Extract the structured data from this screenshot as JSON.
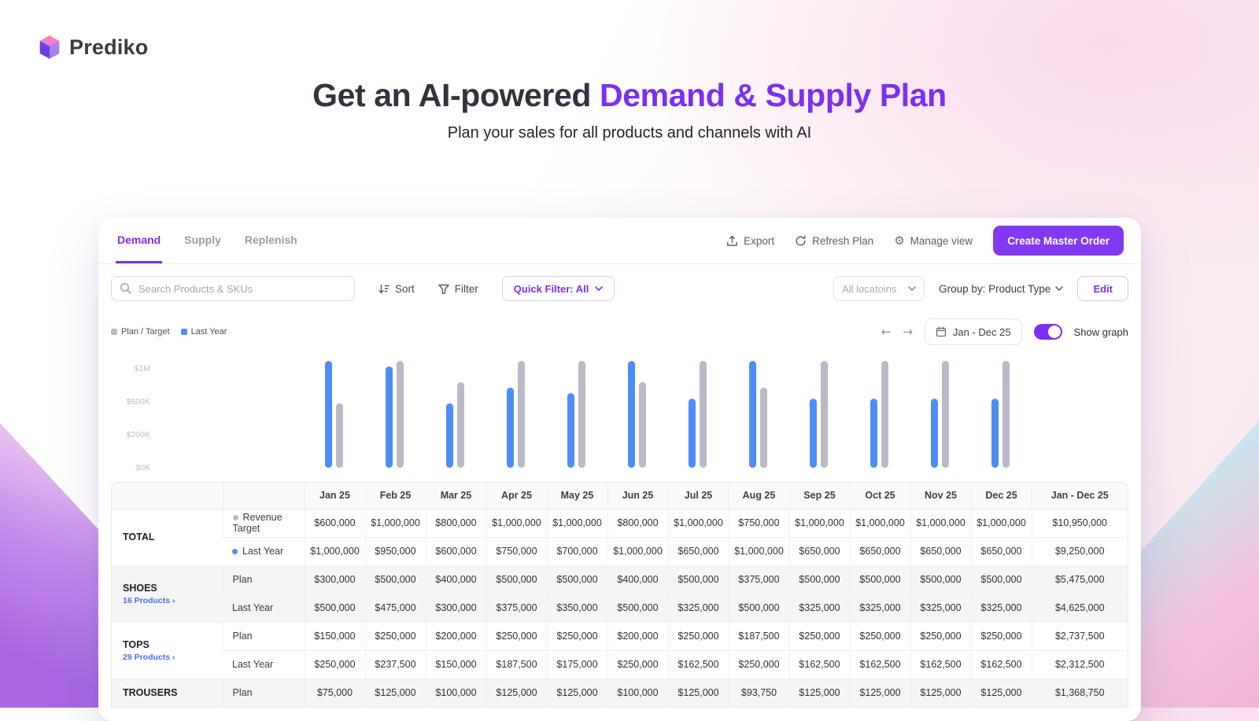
{
  "brand": {
    "name": "Prediko"
  },
  "hero": {
    "title_prefix": "Get an AI-powered ",
    "title_highlight": "Demand & Supply Plan",
    "subtitle": "Plan your sales for all products and channels with AI"
  },
  "tabs": [
    {
      "label": "Demand",
      "active": true
    },
    {
      "label": "Supply",
      "active": false
    },
    {
      "label": "Replenish",
      "active": false
    }
  ],
  "header_actions": {
    "export": "Export",
    "refresh_plan": "Refresh Plan",
    "manage_view": "Manage view",
    "create_master_order": "Create Master Order"
  },
  "toolbar": {
    "search_placeholder": "Search Products & SKUs",
    "sort": "Sort",
    "filter": "Filter",
    "quick_filter": "Quick Filter: All",
    "locations": "All locatoins",
    "group_by": "Group by: Product Type",
    "edit": "Edit"
  },
  "legend": [
    {
      "label": "Plan / Target",
      "color": "#B9BAC6"
    },
    {
      "label": "Last Year",
      "color": "#4E8DF6"
    }
  ],
  "chart_controls": {
    "date_range": "Jan - Dec 25",
    "show_graph": "Show graph"
  },
  "icons": {
    "prev_arrow": "←",
    "next_arrow": "→",
    "gear": "⚙",
    "products_chevron": "›"
  },
  "colors": {
    "accent_purple": "#7C2FF0",
    "button_purple": "#8239F2",
    "bar_blue": "#4E8DF6",
    "bar_gray": "#B9BAC6"
  },
  "chart_data": {
    "type": "bar",
    "title": "",
    "xlabel": "",
    "ylabel": "",
    "categories": [
      "Jan 25",
      "Feb 25",
      "Mar 25",
      "Apr 25",
      "May 25",
      "Jun 25",
      "Jul 25",
      "Aug 25",
      "Sep 25",
      "Oct 25",
      "Nov 25",
      "Dec 25"
    ],
    "series": [
      {
        "name": "Last Year",
        "color": "#4E8DF6",
        "values": [
          1000000,
          950000,
          600000,
          750000,
          700000,
          1000000,
          650000,
          1000000,
          650000,
          650000,
          650000,
          650000
        ]
      },
      {
        "name": "Plan / Target",
        "color": "#B9BAC6",
        "values": [
          600000,
          1000000,
          800000,
          1000000,
          1000000,
          800000,
          1000000,
          750000,
          1000000,
          1000000,
          1000000,
          1000000
        ]
      }
    ],
    "yticks": [
      "$1M",
      "$600K",
      "$200K",
      "$0K"
    ],
    "ylim": [
      0,
      1000000
    ],
    "grid": false,
    "legend_position": "top-left"
  },
  "table": {
    "columns": [
      "Jan 25",
      "Feb 25",
      "Mar 25",
      "Apr 25",
      "May 25",
      "Jun 25",
      "Jul 25",
      "Aug 25",
      "Sep 25",
      "Oct 25",
      "Nov 25",
      "Dec 25",
      "Jan - Dec 25"
    ],
    "groups": [
      {
        "name": "TOTAL",
        "rows": [
          {
            "label": "Revenue Target",
            "dot": "#B9BAC6",
            "values": [
              "$600,000",
              "$1,000,000",
              "$800,000",
              "$1,000,000",
              "$1,000,000",
              "$800,000",
              "$1,000,000",
              "$750,000",
              "$1,000,000",
              "$1,000,000",
              "$1,000,000",
              "$1,000,000",
              "$10,950,000"
            ]
          },
          {
            "label": "Last Year",
            "dot": "#4E8DF6",
            "values": [
              "$1,000,000",
              "$950,000",
              "$600,000",
              "$750,000",
              "$700,000",
              "$1,000,000",
              "$650,000",
              "$1,000,000",
              "$650,000",
              "$650,000",
              "$650,000",
              "$650,000",
              "$9,250,000"
            ]
          }
        ]
      },
      {
        "name": "SHOES",
        "link": "16 Products",
        "rows": [
          {
            "label": "Plan",
            "values": [
              "$300,000",
              "$500,000",
              "$400,000",
              "$500,000",
              "$500,000",
              "$400,000",
              "$500,000",
              "$375,000",
              "$500,000",
              "$500,000",
              "$500,000",
              "$500,000",
              "$5,475,000"
            ]
          },
          {
            "label": "Last Year",
            "values": [
              "$500,000",
              "$475,000",
              "$300,000",
              "$375,000",
              "$350,000",
              "$500,000",
              "$325,000",
              "$500,000",
              "$325,000",
              "$325,000",
              "$325,000",
              "$325,000",
              "$4,625,000"
            ]
          }
        ]
      },
      {
        "name": "TOPS",
        "link": "29 Products",
        "rows": [
          {
            "label": "Plan",
            "values": [
              "$150,000",
              "$250,000",
              "$200,000",
              "$250,000",
              "$250,000",
              "$200,000",
              "$250,000",
              "$187,500",
              "$250,000",
              "$250,000",
              "$250,000",
              "$250,000",
              "$2,737,500"
            ]
          },
          {
            "label": "Last Year",
            "values": [
              "$250,000",
              "$237,500",
              "$150,000",
              "$187,500",
              "$175,000",
              "$250,000",
              "$162,500",
              "$250,000",
              "$162,500",
              "$162,500",
              "$162,500",
              "$162,500",
              "$2,312,500"
            ]
          }
        ]
      },
      {
        "name": "TROUSERS",
        "rows": [
          {
            "label": "Plan",
            "values": [
              "$75,000",
              "$125,000",
              "$100,000",
              "$125,000",
              "$125,000",
              "$100,000",
              "$125,000",
              "$93,750",
              "$125,000",
              "$125,000",
              "$125,000",
              "$125,000",
              "$1,368,750"
            ]
          }
        ]
      }
    ]
  }
}
